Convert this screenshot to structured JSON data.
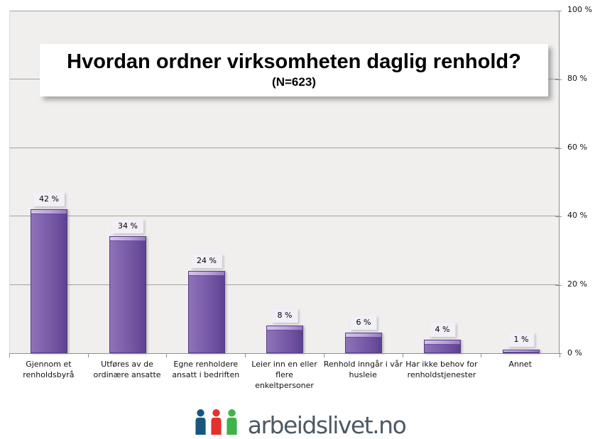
{
  "chart_data": {
    "type": "bar",
    "title": "Hvordan ordner virksomheten daglig renhold?",
    "subtitle": "(N=623)",
    "categories": [
      "Gjennom et renholdsbyrå",
      "Utføres av de ordinære ansatte",
      "Egne renholdere ansatt i bedriften",
      "Leier inn en eller flere enkeltpersoner",
      "Renhold inngår i vår husleie",
      "Har ikke behov for renholdstjenester",
      "Annet"
    ],
    "category_label_lines": [
      [
        "Gjennom et",
        "renholdsbyrå"
      ],
      [
        "Utføres av de",
        "ordinære ansatte"
      ],
      [
        "Egne renholdere",
        "ansatt i bedriften"
      ],
      [
        "Leier inn en eller",
        "flere",
        "enkeltpersoner"
      ],
      [
        "Renhold inngår i vår",
        "husleie"
      ],
      [
        "Har ikke behov for",
        "renholdstjenester"
      ],
      [
        "Annet"
      ]
    ],
    "values": [
      42,
      34,
      24,
      8,
      6,
      4,
      1
    ],
    "value_labels": [
      "42 %",
      "34 %",
      "24 %",
      "8 %",
      "6 %",
      "4 %",
      "1 %"
    ],
    "xlabel": "",
    "ylabel": "",
    "ylim": [
      0,
      100
    ],
    "yticks": [
      0,
      20,
      40,
      60,
      80,
      100
    ],
    "ytick_labels": [
      "0 %",
      "20 %",
      "40 %",
      "60 %",
      "80 %",
      "100 %"
    ],
    "grid": true,
    "legend": false,
    "yaxis_position": "right",
    "bar_color": "#7e61ac",
    "bar_color_dark": "#5d4190",
    "bar_color_light": "#bca3de",
    "plot_background": "#f0efee",
    "gridline_color": "#a2a2a2"
  },
  "footer": {
    "logo_text": "arbeidslivet.no",
    "logo_icon": "three-people-icon",
    "logo_colors": {
      "blue": "#17577e",
      "red": "#e5312e",
      "green": "#3cb44a"
    },
    "logo_text_color": "#4d5963"
  }
}
